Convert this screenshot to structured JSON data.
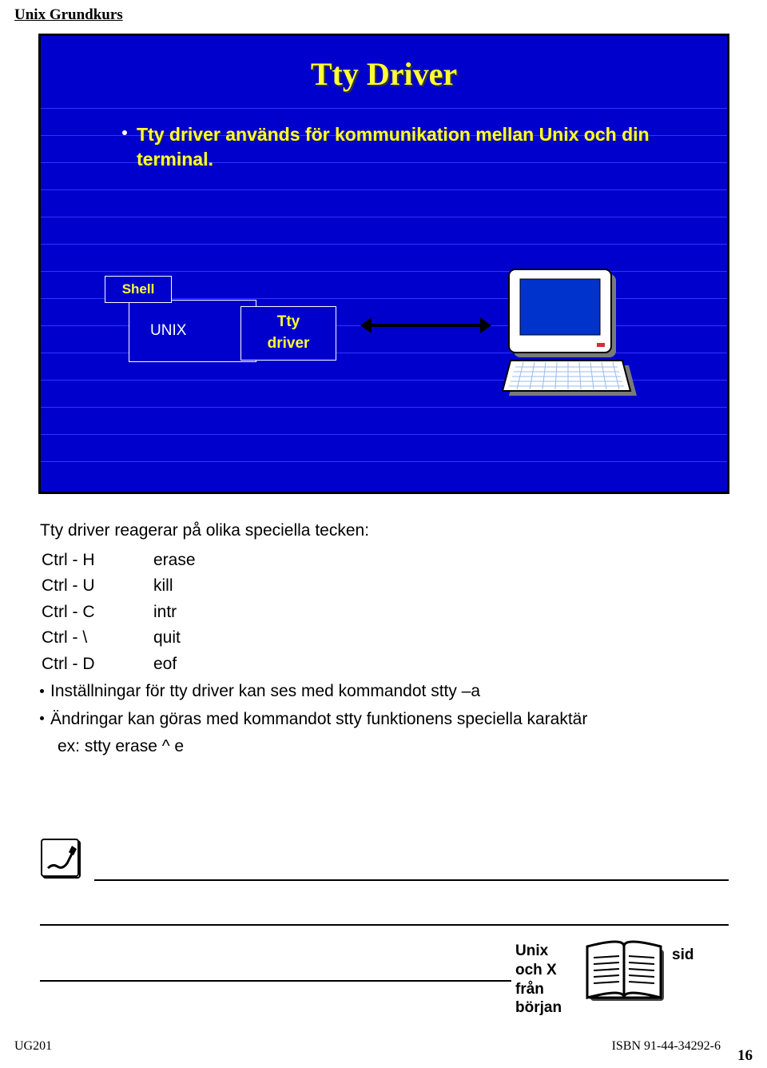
{
  "header": "Unix Grundkurs",
  "slide": {
    "title": "Tty Driver",
    "bullet": "Tty driver används för kommunikation mellan Unix och din terminal.",
    "shell_label": "Shell",
    "unix_label": "UNIX",
    "tty_label_1": "Tty",
    "tty_label_2": "driver",
    "colors": {
      "background": "#0000cc",
      "title_color": "#ffff33",
      "text_color": "#ffff33",
      "box_border": "#ffffff",
      "rule_lines": "#3333ff"
    }
  },
  "body": {
    "intro": "Tty driver reagerar på olika speciella tecken:",
    "keys": [
      {
        "combo": "Ctrl - H",
        "action": "erase"
      },
      {
        "combo": "Ctrl - U",
        "action": "kill"
      },
      {
        "combo": "Ctrl - C",
        "action": "intr"
      },
      {
        "combo": "Ctrl - \\",
        "action": "quit"
      },
      {
        "combo": "Ctrl - D",
        "action": "eof"
      }
    ],
    "bullet1": "Inställningar för tty driver kan ses med kommandot   stty –a",
    "bullet2": "Ändringar kan göras med kommandot stty funktionens speciella karaktär",
    "example": "ex: stty erase  ^ e"
  },
  "book": {
    "line1": "Unix",
    "line2": "och X",
    "line3": "från",
    "line4": "början",
    "sid": "sid"
  },
  "footer": {
    "left": "UG201",
    "right": "ISBN 91-44-34292-6",
    "page": "16"
  }
}
